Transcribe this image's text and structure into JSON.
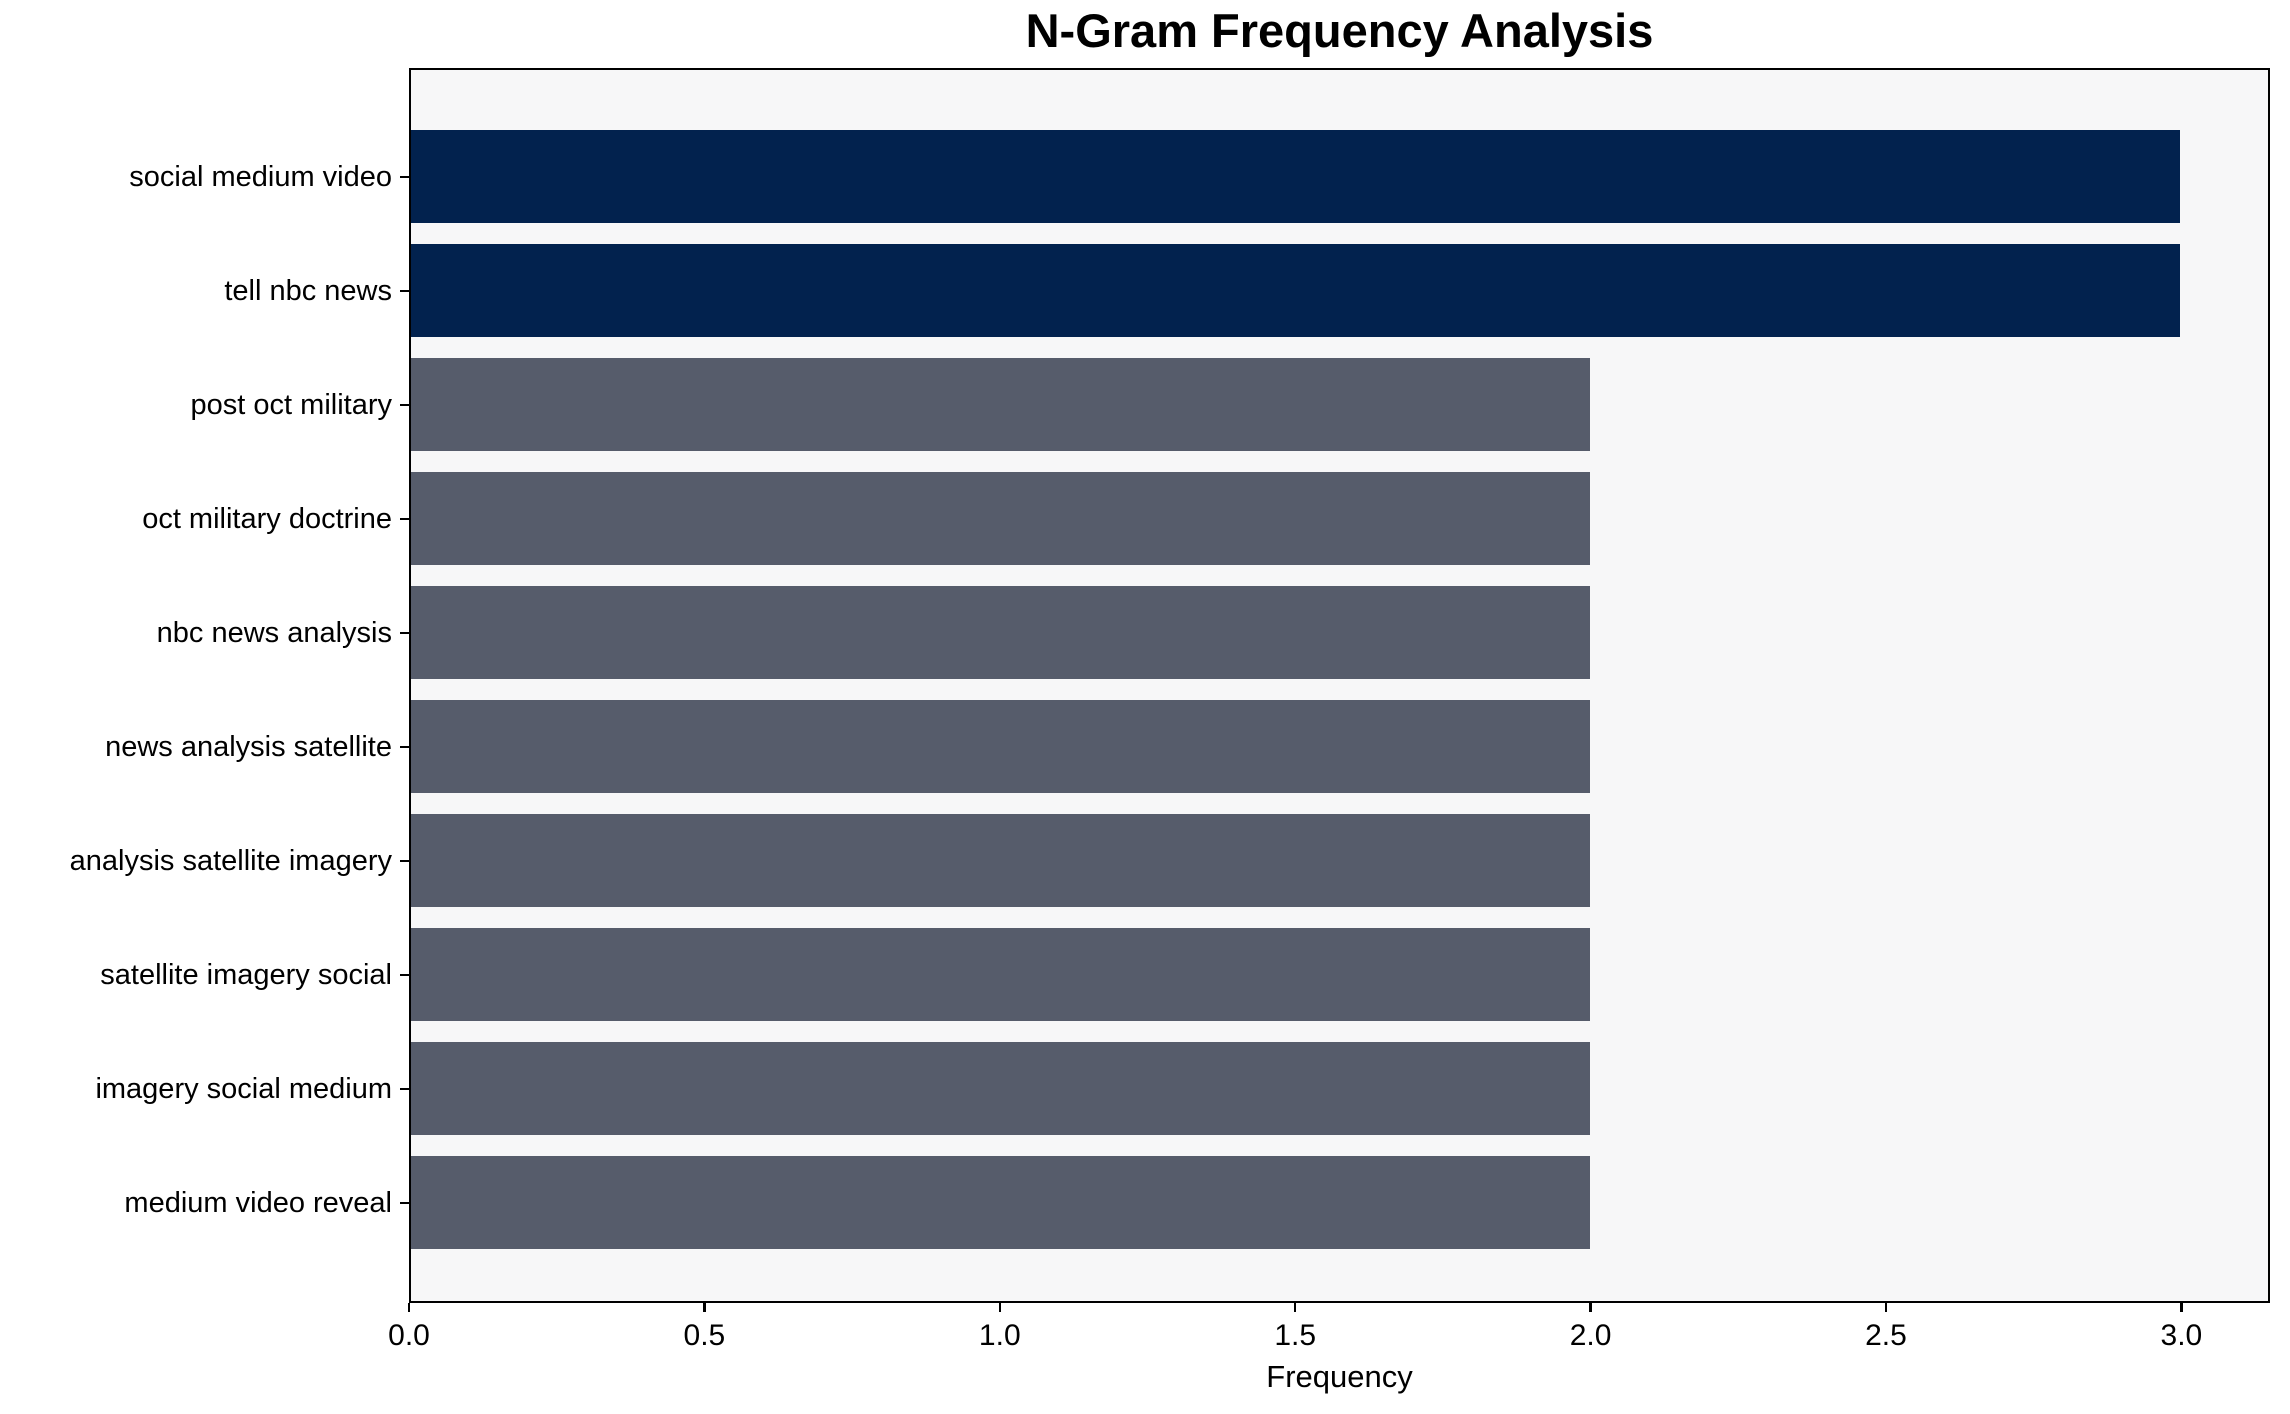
{
  "chart_data": {
    "type": "bar",
    "orientation": "horizontal",
    "title": "N-Gram Frequency Analysis",
    "xlabel": "Frequency",
    "ylabel": "",
    "categories": [
      "social medium video",
      "tell nbc news",
      "post oct military",
      "oct military doctrine",
      "nbc news analysis",
      "news analysis satellite",
      "analysis satellite imagery",
      "satellite imagery social",
      "imagery social medium",
      "medium video reveal"
    ],
    "values": [
      3,
      3,
      2,
      2,
      2,
      2,
      2,
      2,
      2,
      2
    ],
    "bar_colors": [
      "#02224E",
      "#02224E",
      "#565C6B",
      "#565C6B",
      "#565C6B",
      "#565C6B",
      "#565C6B",
      "#565C6B",
      "#565C6B",
      "#565C6B"
    ],
    "xlim": [
      0,
      3.15
    ],
    "xticks": [
      0.0,
      0.5,
      1.0,
      1.5,
      2.0,
      2.5,
      3.0
    ],
    "xtick_labels": [
      "0.0",
      "0.5",
      "1.0",
      "1.5",
      "2.0",
      "2.5",
      "3.0"
    ],
    "grid": false,
    "legend": "none",
    "plot_background": "#F7F7F8",
    "figure_background": "#FFFFFF",
    "spine_color": "#000000",
    "highlight_color": "#02224E",
    "default_color": "#565C6B"
  }
}
